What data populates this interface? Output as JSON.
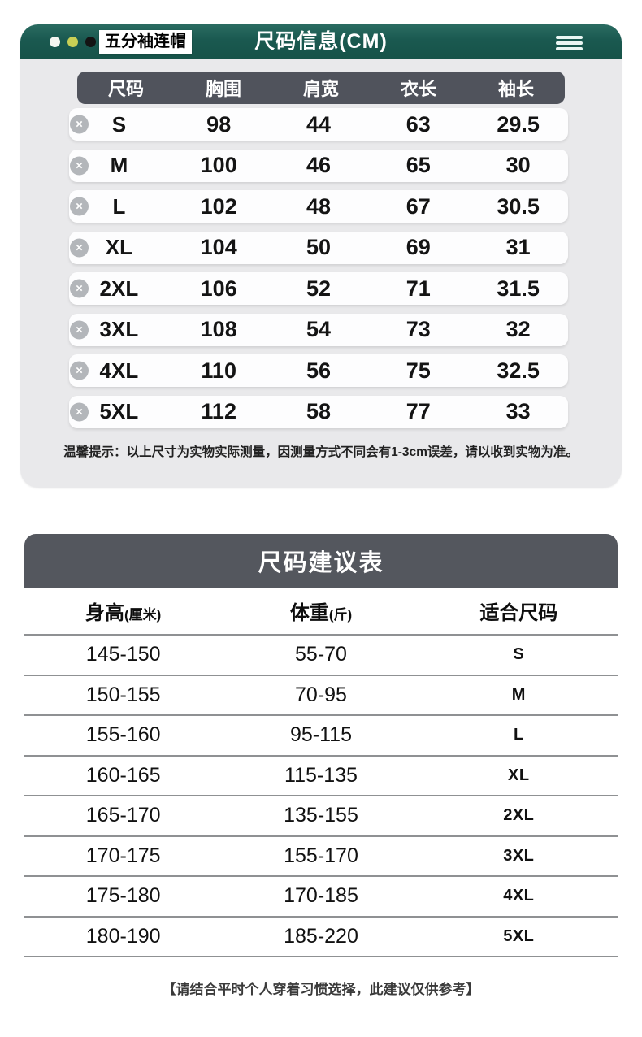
{
  "window": {
    "tag_label": "五分袖连帽",
    "title": "尺码信息(CM)"
  },
  "size_table": {
    "columns": [
      "尺码",
      "胸围",
      "肩宽",
      "衣长",
      "袖长"
    ],
    "rows": [
      [
        "S",
        "98",
        "44",
        "63",
        "29.5"
      ],
      [
        "M",
        "100",
        "46",
        "65",
        "30"
      ],
      [
        "L",
        "102",
        "48",
        "67",
        "30.5"
      ],
      [
        "XL",
        "104",
        "50",
        "69",
        "31"
      ],
      [
        "2XL",
        "106",
        "52",
        "71",
        "31.5"
      ],
      [
        "3XL",
        "108",
        "54",
        "73",
        "32"
      ],
      [
        "4XL",
        "110",
        "56",
        "75",
        "32.5"
      ],
      [
        "5XL",
        "112",
        "58",
        "77",
        "33"
      ]
    ],
    "note": "温馨提示：以上尺寸为实物实际测量，因测量方式不同会有1-3cm误差，请以收到实物为准。"
  },
  "suggestion_table": {
    "title": "尺码建议表",
    "columns": [
      {
        "label": "身高",
        "unit": "(厘米)"
      },
      {
        "label": "体重",
        "unit": "(斤)"
      },
      {
        "label": "适合尺码",
        "unit": ""
      }
    ],
    "rows": [
      [
        "145-150",
        "55-70",
        "S"
      ],
      [
        "150-155",
        "70-95",
        "M"
      ],
      [
        "155-160",
        "95-115",
        "L"
      ],
      [
        "160-165",
        "115-135",
        "XL"
      ],
      [
        "165-170",
        "135-155",
        "2XL"
      ],
      [
        "170-175",
        "155-170",
        "3XL"
      ],
      [
        "175-180",
        "170-185",
        "4XL"
      ],
      [
        "180-190",
        "185-220",
        "5XL"
      ]
    ],
    "footer": "【请结合平时个人穿着习惯选择，此建议仅供参考】"
  },
  "icons": {
    "row_delete": "×",
    "menu": "hamburger"
  },
  "colors": {
    "titlebar_teal": "#1a5950",
    "card_bg": "#e9e9eb",
    "size_table_header_bg": "#50535c",
    "suggestion_header_bg": "#54575e",
    "divider": "#8f9193",
    "dot_white": "#f5f6f1",
    "dot_yellow": "#c9cf55",
    "dot_black": "#141414"
  }
}
